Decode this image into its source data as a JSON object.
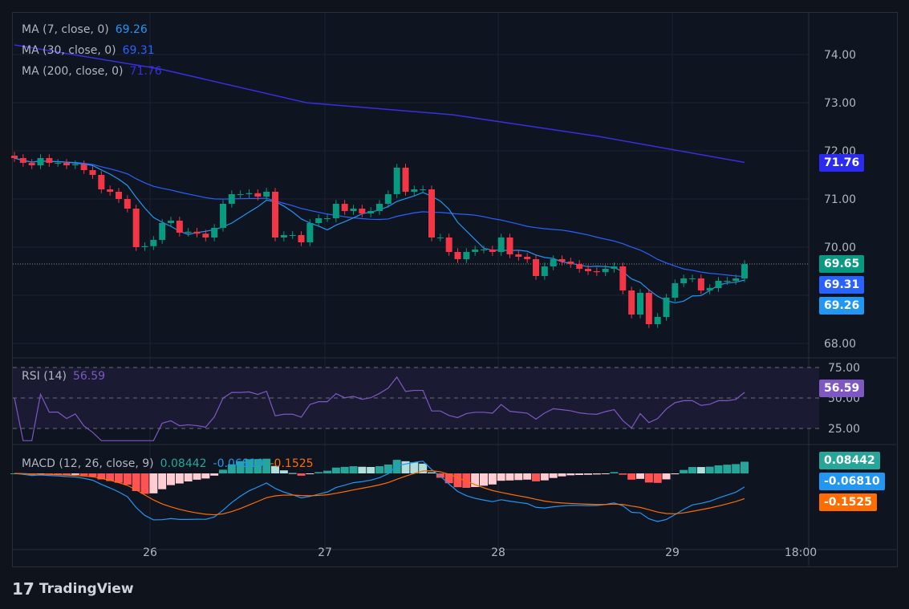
{
  "legend": {
    "ma7": {
      "label": "MA (7, close, 0)",
      "value": "69.26",
      "color": "#2196f3"
    },
    "ma30": {
      "label": "MA (30, close, 0)",
      "value": "69.31",
      "color": "#2962ff"
    },
    "ma200": {
      "label": "MA (200, close, 0)",
      "value": "71.76",
      "color": "#3a2ee0"
    },
    "rsi": {
      "label": "RSI (14)",
      "value": "56.59",
      "color": "#7e57c2"
    },
    "macd": {
      "label": "MACD (12, 26, close, 9)",
      "hist": "0.08442",
      "macd": "-0.06810",
      "signal": "-0.1525"
    }
  },
  "price_axis": [
    "74.00",
    "73.00",
    "72.00",
    "71.00",
    "70.00",
    "68.00"
  ],
  "rsi_axis": [
    "75.00",
    "50.00",
    "25.00"
  ],
  "time_axis": [
    "26",
    "27",
    "28",
    "29",
    "18:00"
  ],
  "tags": {
    "ma200": "71.76",
    "last": "69.65",
    "ma30": "69.31",
    "ma7": "69.26",
    "rsi": "56.59",
    "hist": "0.08442",
    "macd": "-0.06810",
    "signal": "-0.1525"
  },
  "brand": "TradingView",
  "closes": [
    71.85,
    71.75,
    71.7,
    71.85,
    71.75,
    71.75,
    71.7,
    71.72,
    71.6,
    71.5,
    71.2,
    71.15,
    71.0,
    70.8,
    70.0,
    70.02,
    70.15,
    70.5,
    70.55,
    70.3,
    70.32,
    70.28,
    70.2,
    70.4,
    70.9,
    71.1,
    71.1,
    71.12,
    71.05,
    71.15,
    70.2,
    70.25,
    70.25,
    70.1,
    70.5,
    70.6,
    70.6,
    70.9,
    70.75,
    70.8,
    70.7,
    70.75,
    70.9,
    71.1,
    71.65,
    71.15,
    71.2,
    71.2,
    70.2,
    70.2,
    69.9,
    69.75,
    69.9,
    69.95,
    69.95,
    69.9,
    70.2,
    69.85,
    69.8,
    69.75,
    69.4,
    69.6,
    69.75,
    69.7,
    69.65,
    69.55,
    69.5,
    69.48,
    69.55,
    69.6,
    69.1,
    68.6,
    69.05,
    68.4,
    68.55,
    68.95,
    69.25,
    69.35,
    69.35,
    69.1,
    69.15,
    69.3,
    69.3,
    69.35,
    69.65
  ],
  "ma200_points": [
    [
      0,
      74.2
    ],
    [
      0.2,
      73.7
    ],
    [
      0.4,
      73.0
    ],
    [
      0.6,
      72.75
    ],
    [
      0.8,
      72.3
    ],
    [
      1,
      71.76
    ]
  ]
}
